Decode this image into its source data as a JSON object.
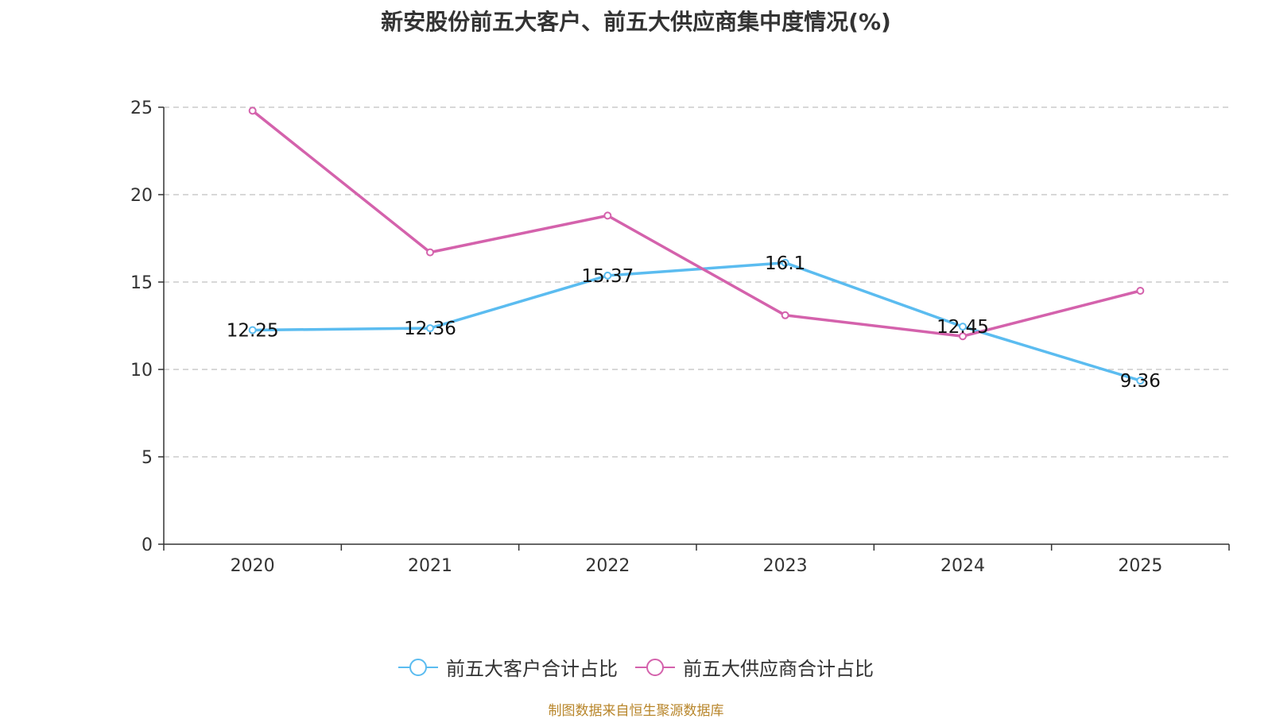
{
  "chart_data": {
    "type": "line",
    "title": "新安股份前五大客户、前五大供应商集中度情况(%)",
    "categories": [
      "2020",
      "2021",
      "2022",
      "2023",
      "2024",
      "2025"
    ],
    "ylim": [
      0,
      25
    ],
    "yticks": [
      0,
      5,
      10,
      15,
      20,
      25
    ],
    "grid": true,
    "legend_position": "bottom",
    "series": [
      {
        "name": "前五大客户合计占比",
        "color": "#5bbcf0",
        "values": [
          12.25,
          12.36,
          15.37,
          16.1,
          12.45,
          9.36
        ],
        "labels": [
          "12.25",
          "12.36",
          "15.37",
          "16.1",
          "12.45",
          "9.36"
        ]
      },
      {
        "name": "前五大供应商合计占比",
        "color": "#d462ac",
        "values": [
          24.8,
          16.7,
          18.8,
          13.1,
          11.9,
          14.5
        ]
      }
    ]
  },
  "source": "制图数据来自恒生聚源数据库"
}
